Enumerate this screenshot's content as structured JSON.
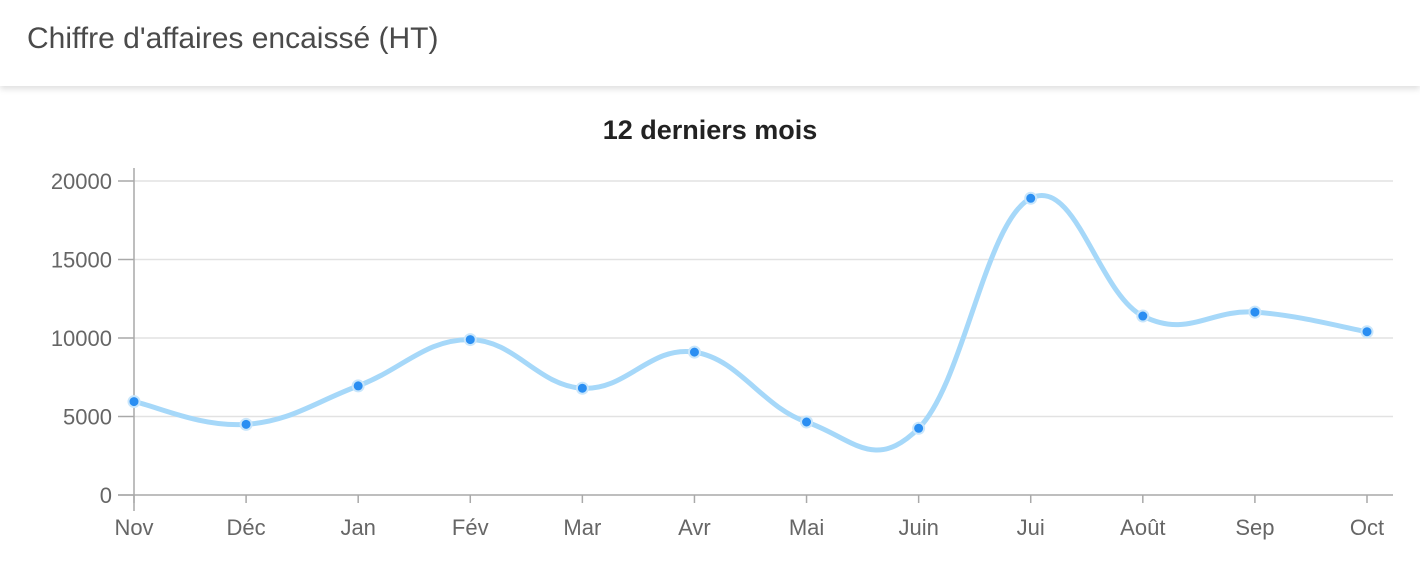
{
  "header": {
    "title": "Chiffre d'affaires encaissé (HT)"
  },
  "chart_data": {
    "type": "line",
    "title": "12 derniers mois",
    "xlabel": "",
    "ylabel": "",
    "categories": [
      "Nov",
      "Déc",
      "Jan",
      "Fév",
      "Mar",
      "Avr",
      "Mai",
      "Juin",
      "Jui",
      "Août",
      "Sep",
      "Oct"
    ],
    "series": [
      {
        "values": [
          5950,
          4500,
          6950,
          9900,
          6800,
          9100,
          4650,
          4250,
          18900,
          11400,
          11650,
          10400
        ]
      }
    ],
    "ylim": [
      0,
      20000
    ],
    "yticks": [
      "0",
      "5000",
      "10000",
      "15000",
      "20000"
    ],
    "grid": true,
    "legend": "none",
    "colors": {
      "line": "#a6d8f9",
      "point": "#2a8ef2",
      "point_border": "#c9e6fb",
      "grid": "#e2e2e2",
      "axis": "#a9a9a9"
    }
  }
}
